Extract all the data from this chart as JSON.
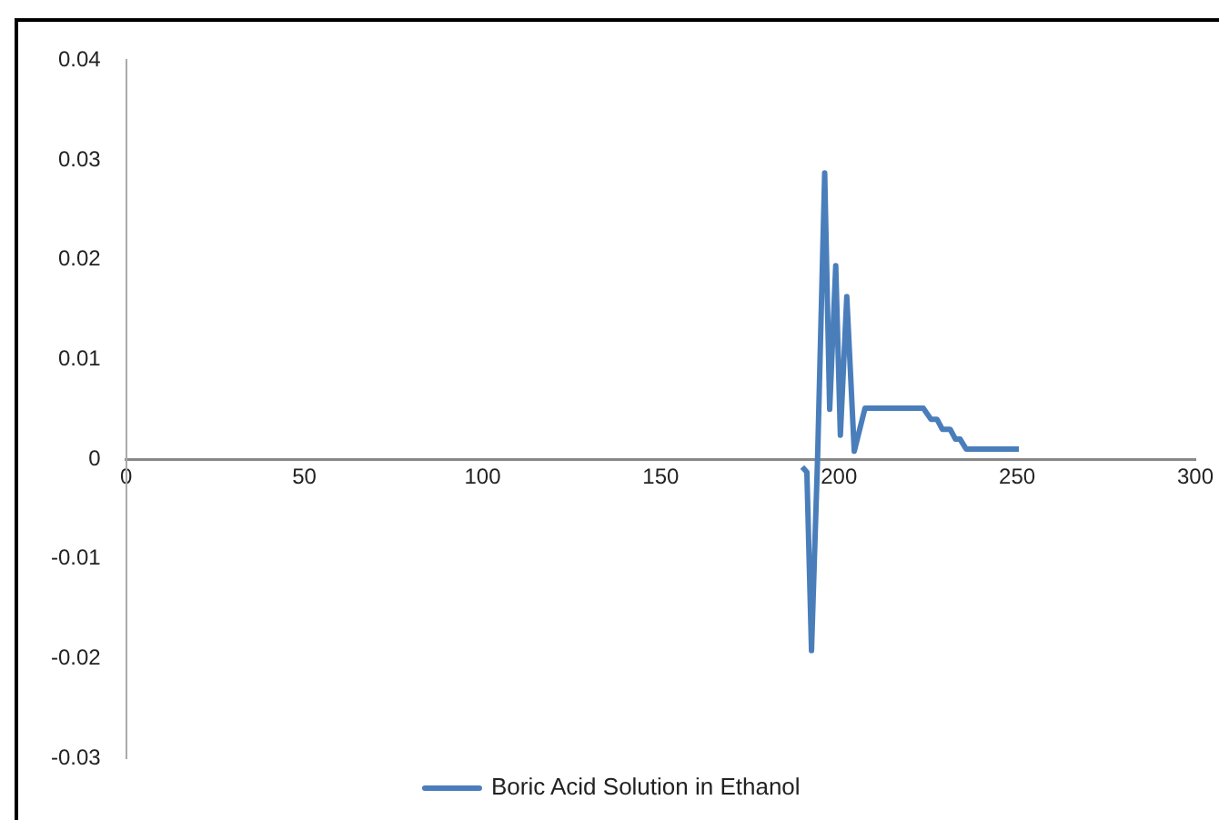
{
  "chart_data": {
    "type": "line",
    "x": [
      189.7,
      191,
      192.3,
      194,
      196,
      197.4,
      199.1,
      200.4,
      202.2,
      204.3,
      207.3,
      223.7,
      225.8,
      227.5,
      229,
      231.2,
      232.7,
      234,
      235.7,
      250.5
    ],
    "series": [
      {
        "name": "Boric Acid Solution in Ethanol",
        "color": "#4a7ebb",
        "values": [
          -0.0008,
          -0.0013,
          -0.0192,
          0,
          0.0287,
          0.005,
          0.0194,
          0.0024,
          0.0163,
          0.0008,
          0.0051,
          0.0051,
          0.004,
          0.004,
          0.003,
          0.003,
          0.002,
          0.002,
          0.001,
          0.001
        ]
      }
    ],
    "xlim": [
      0,
      300
    ],
    "xticks": [
      0,
      50,
      100,
      150,
      200,
      250,
      300
    ],
    "ylim": [
      -0.03,
      0.04
    ],
    "yticks": [
      -0.03,
      -0.02,
      -0.01,
      0,
      0.01,
      0.02,
      0.03,
      0.04
    ],
    "grid": false,
    "legend": "bottom",
    "marker": "none",
    "line_style": "solid"
  }
}
